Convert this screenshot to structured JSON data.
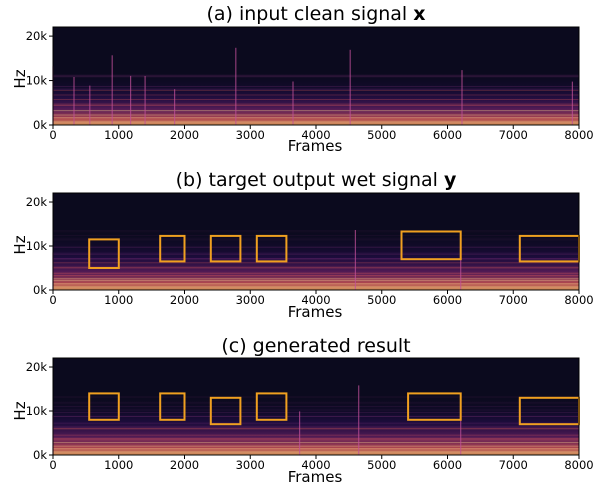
{
  "chart_data": [
    {
      "type": "heatmap",
      "title_prefix": "(a) input clean signal ",
      "title_bold": "x",
      "xlabel": "Frames",
      "ylabel": "Hz",
      "xlim": [
        0,
        8000
      ],
      "ylim": [
        0,
        22050
      ],
      "xticks": [
        0,
        1000,
        2000,
        3000,
        4000,
        5000,
        6000,
        7000,
        8000
      ],
      "xtick_labels": [
        "0",
        "1000",
        "2000",
        "3000",
        "4000",
        "5000",
        "6000",
        "7000",
        "8000"
      ],
      "yticks": [
        0,
        10000,
        20000
      ],
      "ytick_labels": [
        "0k",
        "10k",
        "20k"
      ],
      "colormap": "magma",
      "onsets": [
        0,
        320,
        560,
        900,
        1180,
        1400,
        1850,
        2780,
        3650,
        4520,
        6220,
        7900
      ],
      "highlight_boxes": []
    },
    {
      "type": "heatmap",
      "title_prefix": "(b) target output wet signal ",
      "title_bold": "y",
      "xlabel": "Frames",
      "ylabel": "Hz",
      "xlim": [
        0,
        8000
      ],
      "ylim": [
        0,
        22050
      ],
      "xticks": [
        0,
        1000,
        2000,
        3000,
        4000,
        5000,
        6000,
        7000,
        8000
      ],
      "xtick_labels": [
        "0",
        "1000",
        "2000",
        "3000",
        "4000",
        "5000",
        "6000",
        "7000",
        "8000"
      ],
      "yticks": [
        0,
        10000,
        20000
      ],
      "ytick_labels": [
        "0k",
        "10k",
        "20k"
      ],
      "colormap": "magma",
      "onsets": [
        0,
        4600,
        6200
      ],
      "highlight_boxes": [
        {
          "x0": 550,
          "x1": 1000,
          "y0": 5000,
          "y1": 11500
        },
        {
          "x0": 1630,
          "x1": 2000,
          "y0": 6500,
          "y1": 12300
        },
        {
          "x0": 2400,
          "x1": 2850,
          "y0": 6500,
          "y1": 12300
        },
        {
          "x0": 3100,
          "x1": 3550,
          "y0": 6500,
          "y1": 12300
        },
        {
          "x0": 5300,
          "x1": 6200,
          "y0": 7000,
          "y1": 13300
        },
        {
          "x0": 7100,
          "x1": 8000,
          "y0": 6500,
          "y1": 12300
        }
      ],
      "box_color": "#f0a020"
    },
    {
      "type": "heatmap",
      "title_prefix": "(c) generated result",
      "title_bold": "",
      "xlabel": "Frames",
      "ylabel": "Hz",
      "xlim": [
        0,
        8000
      ],
      "ylim": [
        0,
        22050
      ],
      "xticks": [
        0,
        1000,
        2000,
        3000,
        4000,
        5000,
        6000,
        7000,
        8000
      ],
      "xtick_labels": [
        "0",
        "1000",
        "2000",
        "3000",
        "4000",
        "5000",
        "6000",
        "7000",
        "8000"
      ],
      "yticks": [
        0,
        10000,
        20000
      ],
      "ytick_labels": [
        "0k",
        "10k",
        "20k"
      ],
      "colormap": "magma",
      "onsets": [
        0,
        3750,
        4650,
        6200
      ],
      "highlight_boxes": [
        {
          "x0": 550,
          "x1": 1000,
          "y0": 8000,
          "y1": 14000
        },
        {
          "x0": 1630,
          "x1": 2000,
          "y0": 8000,
          "y1": 14000
        },
        {
          "x0": 2400,
          "x1": 2850,
          "y0": 7000,
          "y1": 13000
        },
        {
          "x0": 3100,
          "x1": 3550,
          "y0": 8000,
          "y1": 14000
        },
        {
          "x0": 5400,
          "x1": 6200,
          "y0": 8000,
          "y1": 14000
        },
        {
          "x0": 7100,
          "x1": 8000,
          "y0": 7000,
          "y1": 13000
        }
      ],
      "box_color": "#f0a020"
    }
  ]
}
